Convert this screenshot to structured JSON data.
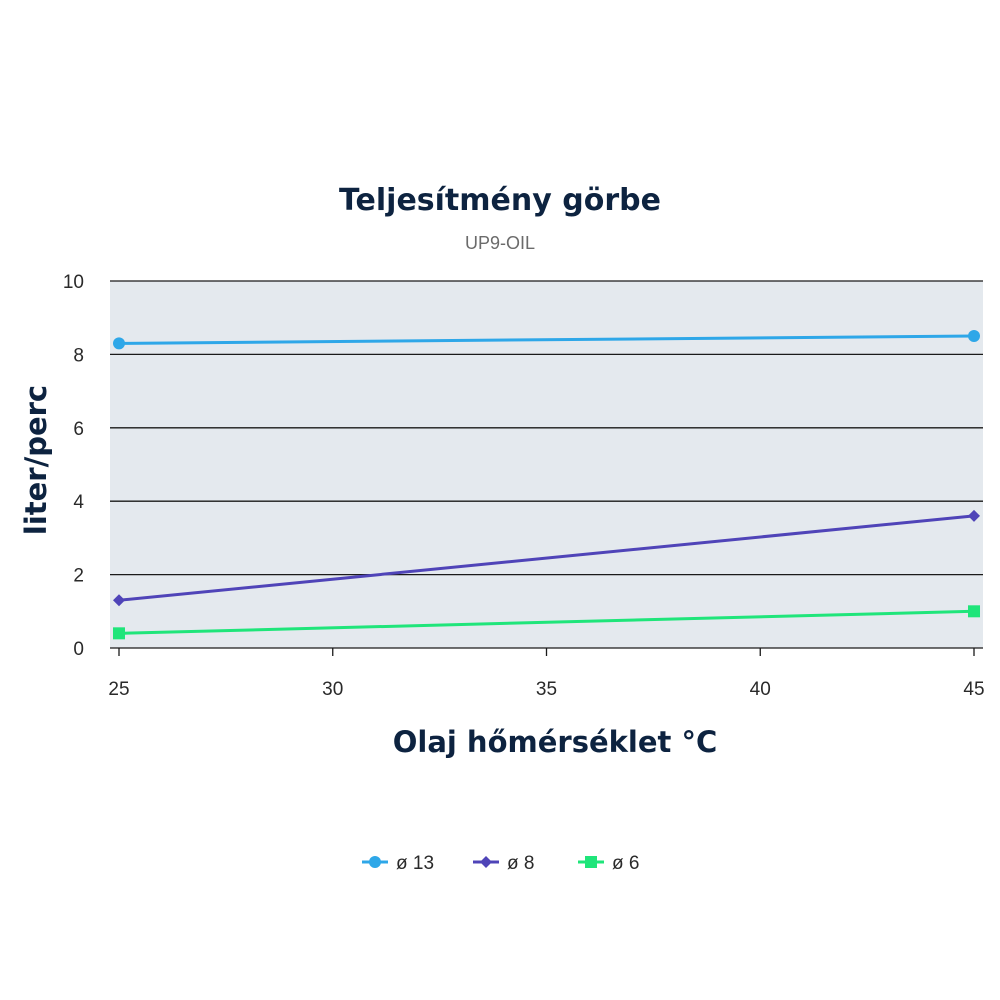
{
  "chart_data": {
    "type": "line",
    "title": "Teljesítmény görbe",
    "subtitle": "UP9-OIL",
    "xlabel": "Olaj hőmérséklet °C",
    "ylabel": "liter/perc",
    "xlim": [
      25,
      45
    ],
    "ylim": [
      0,
      10
    ],
    "x_ticks": [
      "25",
      "30",
      "35",
      "40",
      "45"
    ],
    "y_ticks": [
      "0",
      "2",
      "4",
      "6",
      "8",
      "10"
    ],
    "grid": true,
    "legend_position": "bottom-center",
    "plot_background": "#e4e9ee",
    "series": [
      {
        "name": "ø 13",
        "marker": "circle",
        "color": "#2ea7e8",
        "x": [
          25,
          45
        ],
        "y": [
          8.3,
          8.5
        ]
      },
      {
        "name": "ø 8",
        "marker": "diamond",
        "color": "#4f44b8",
        "x": [
          25,
          45
        ],
        "y": [
          1.3,
          3.6
        ]
      },
      {
        "name": "ø 6",
        "marker": "square",
        "color": "#1fe57a",
        "x": [
          25,
          45
        ],
        "y": [
          0.4,
          1.0
        ]
      }
    ]
  }
}
